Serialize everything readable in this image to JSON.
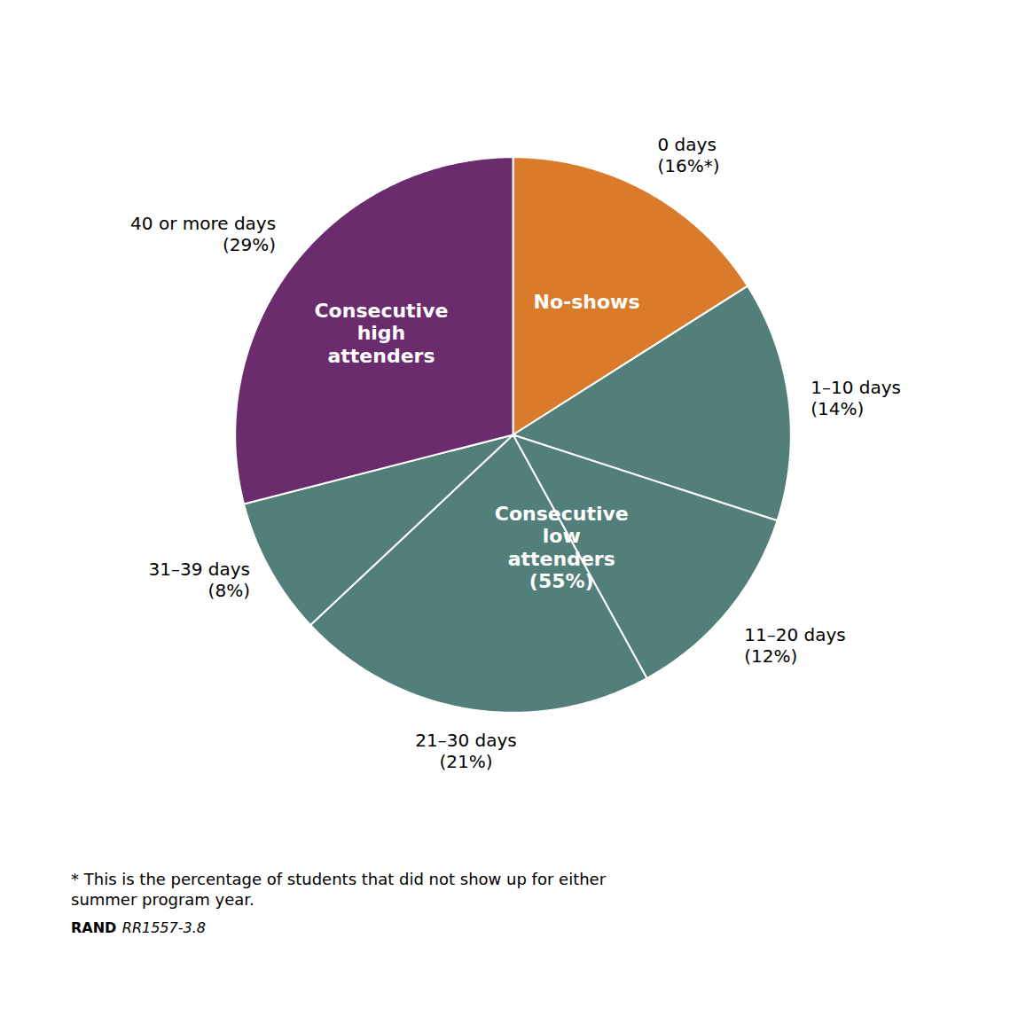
{
  "chart_data": {
    "type": "pie",
    "categories": [
      "0 days\n(16%*)",
      "1–10 days\n(14%)",
      "11–20 days\n(12%)",
      "21–30 days\n(21%)",
      "31–39 days\n(8%)",
      "40 or more days\n(29%)"
    ],
    "values": [
      16,
      14,
      12,
      21,
      8,
      29
    ],
    "colors": [
      "#D97B2B",
      "#527F7A",
      "#527F7A",
      "#527F7A",
      "#527F7A",
      "#6B2C6E"
    ],
    "annotations": [
      "No-shows",
      "Consecutive\nlow\nattenders\n(55%)",
      "Consecutive\nhigh\nattenders",
      "* This is the percentage of students that did not show up for either\nsummer program year.",
      "RAND",
      "RR1557-3.8"
    ]
  }
}
